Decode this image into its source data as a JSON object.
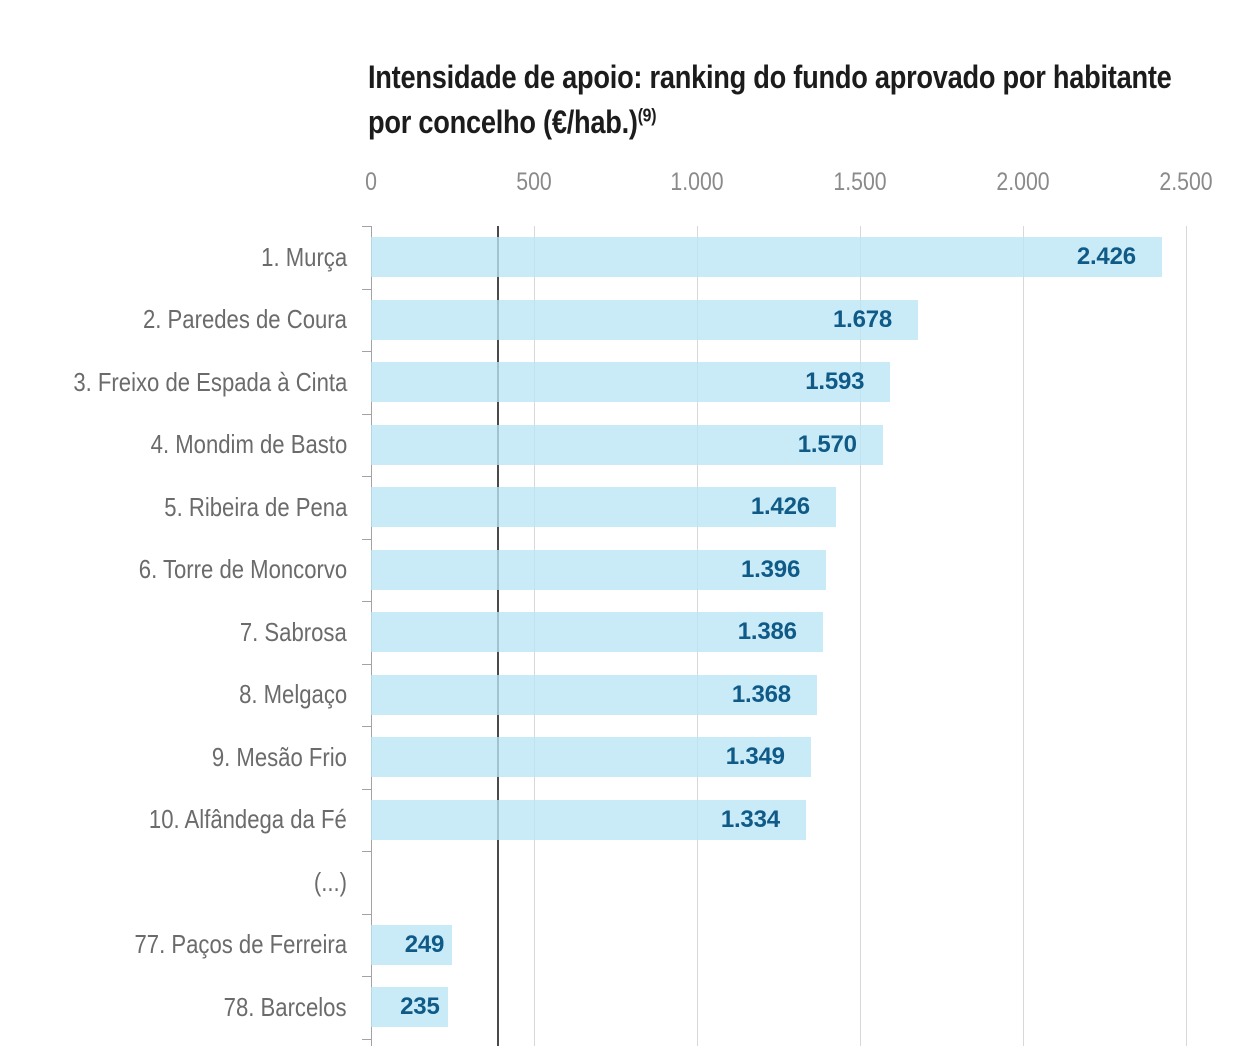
{
  "chart_data": {
    "type": "bar",
    "orientation": "horizontal",
    "title": "Intensidade de apoio: ranking do fundo aprovado por habitante por concelho (€/hab.)",
    "title_superscript": "(9)",
    "categories": [
      "1. Murça",
      "2. Paredes de Coura",
      "3. Freixo de Espada à Cinta",
      "4. Mondim de Basto",
      "5. Ribeira de Pena",
      "6. Torre de Moncorvo",
      "7. Sabrosa",
      "8. Melgaço",
      "9. Mesão Frio",
      "10. Alfândega da Fé",
      "(...)",
      "77. Paços de Ferreira",
      "78. Barcelos"
    ],
    "values": [
      2426,
      1678,
      1593,
      1570,
      1426,
      1396,
      1386,
      1368,
      1349,
      1334,
      null,
      249,
      235
    ],
    "value_labels": [
      "2.426",
      "1.678",
      "1.593",
      "1.570",
      "1.426",
      "1.396",
      "1.386",
      "1.368",
      "1.349",
      "1.334",
      "",
      "249",
      "235"
    ],
    "x_ticks": [
      "0",
      "500",
      "1.000",
      "1.500",
      "2.000",
      "2.500"
    ],
    "x_tick_values": [
      0,
      500,
      1000,
      1500,
      2000,
      2500
    ],
    "xlim": [
      0,
      2500
    ],
    "grid": "vertical",
    "legend": "none",
    "reference_line": {
      "value": 390,
      "axis": "x"
    },
    "unit": "€/hab.",
    "colors": {
      "background": "#FFFFFF",
      "bar_fill": "rgba(186,229,246,0.78)",
      "bar_effective_hex": "#C9EBF8",
      "value_label": "#0F5A87",
      "category_label": "#6B6B6B",
      "axis_label": "#8A8A8A",
      "gridline": "#D8D8D8",
      "axis_line": "#A3A3A3",
      "reference_line": "#4A4A4A",
      "title": "#1C1C1C"
    }
  }
}
